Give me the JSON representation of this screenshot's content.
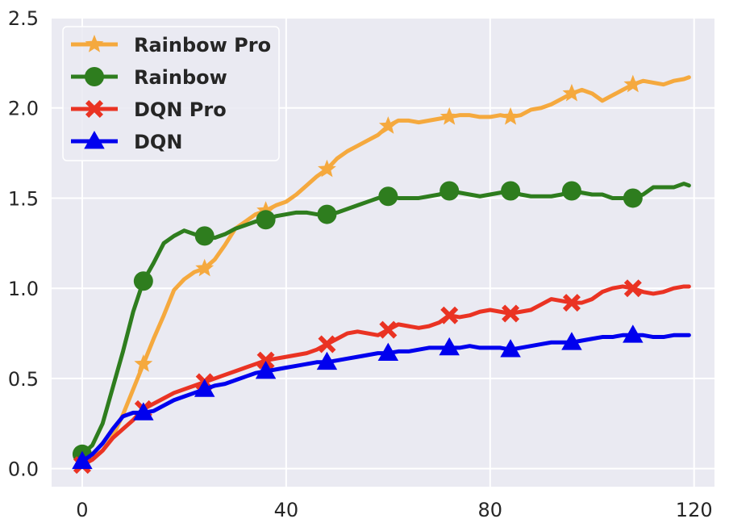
{
  "chart_data": {
    "type": "line",
    "title": "",
    "xlabel": "",
    "ylabel": "",
    "xlim": [
      -6,
      124
    ],
    "ylim": [
      -0.1,
      2.5
    ],
    "xticks": [
      0,
      40,
      80,
      120
    ],
    "yticks": [
      0.0,
      0.5,
      1.0,
      1.5,
      2.0,
      2.5
    ],
    "xtick_labels": [
      "0",
      "40",
      "80",
      "120"
    ],
    "ytick_labels": [
      "0.0",
      "0.5",
      "1.0",
      "1.5",
      "2.0",
      "2.5"
    ],
    "grid": true,
    "legend_position": "top-left",
    "background": "#eaeaf2",
    "series": [
      {
        "name": "Rainbow Pro",
        "color": "#f5a93e",
        "marker": "star",
        "x": [
          0,
          2,
          4,
          6,
          8,
          10,
          12,
          14,
          16,
          18,
          20,
          22,
          24,
          26,
          28,
          30,
          32,
          34,
          36,
          38,
          40,
          42,
          44,
          46,
          48,
          50,
          52,
          54,
          56,
          58,
          60,
          62,
          64,
          66,
          68,
          70,
          72,
          74,
          76,
          78,
          80,
          82,
          84,
          86,
          88,
          90,
          92,
          94,
          96,
          98,
          100,
          102,
          104,
          106,
          108,
          110,
          112,
          114,
          116,
          118,
          119
        ],
        "y": [
          0.03,
          0.06,
          0.1,
          0.18,
          0.3,
          0.44,
          0.58,
          0.72,
          0.85,
          0.99,
          1.05,
          1.09,
          1.11,
          1.16,
          1.24,
          1.33,
          1.37,
          1.41,
          1.43,
          1.46,
          1.48,
          1.52,
          1.57,
          1.62,
          1.66,
          1.72,
          1.76,
          1.79,
          1.82,
          1.85,
          1.9,
          1.93,
          1.93,
          1.92,
          1.93,
          1.94,
          1.95,
          1.96,
          1.96,
          1.95,
          1.95,
          1.96,
          1.95,
          1.96,
          1.99,
          2.0,
          2.02,
          2.05,
          2.08,
          2.1,
          2.08,
          2.04,
          2.07,
          2.1,
          2.13,
          2.15,
          2.14,
          2.13,
          2.15,
          2.16,
          2.17
        ],
        "marker_x": [
          12,
          24,
          36,
          48,
          60,
          72,
          84,
          96,
          108
        ]
      },
      {
        "name": "Rainbow",
        "color": "#2e7d1e",
        "marker": "circle",
        "x": [
          0,
          2,
          4,
          6,
          8,
          10,
          12,
          14,
          16,
          18,
          20,
          22,
          24,
          26,
          28,
          30,
          32,
          34,
          36,
          38,
          40,
          42,
          44,
          46,
          48,
          50,
          52,
          54,
          56,
          58,
          60,
          62,
          64,
          66,
          68,
          70,
          72,
          74,
          76,
          78,
          80,
          82,
          84,
          86,
          88,
          90,
          92,
          94,
          96,
          98,
          100,
          102,
          104,
          106,
          108,
          110,
          112,
          114,
          116,
          118,
          119
        ],
        "y": [
          0.08,
          0.13,
          0.25,
          0.45,
          0.65,
          0.87,
          1.04,
          1.14,
          1.25,
          1.29,
          1.32,
          1.3,
          1.29,
          1.28,
          1.3,
          1.33,
          1.35,
          1.37,
          1.38,
          1.4,
          1.41,
          1.42,
          1.42,
          1.41,
          1.41,
          1.42,
          1.44,
          1.46,
          1.48,
          1.5,
          1.51,
          1.5,
          1.5,
          1.5,
          1.51,
          1.52,
          1.54,
          1.53,
          1.52,
          1.51,
          1.52,
          1.53,
          1.54,
          1.52,
          1.51,
          1.51,
          1.51,
          1.52,
          1.54,
          1.53,
          1.52,
          1.52,
          1.5,
          1.5,
          1.5,
          1.52,
          1.56,
          1.56,
          1.56,
          1.58,
          1.57
        ],
        "marker_x": [
          0,
          12,
          24,
          36,
          48,
          60,
          72,
          84,
          96,
          108
        ]
      },
      {
        "name": "DQN Pro",
        "color": "#ea3323",
        "marker": "x",
        "x": [
          0,
          2,
          4,
          6,
          8,
          10,
          12,
          14,
          16,
          18,
          20,
          22,
          24,
          26,
          28,
          30,
          32,
          34,
          36,
          38,
          40,
          42,
          44,
          46,
          48,
          50,
          52,
          54,
          56,
          58,
          60,
          62,
          64,
          66,
          68,
          70,
          72,
          74,
          76,
          78,
          80,
          82,
          84,
          86,
          88,
          90,
          92,
          94,
          96,
          98,
          100,
          102,
          104,
          106,
          108,
          110,
          112,
          114,
          116,
          118,
          119
        ],
        "y": [
          0.02,
          0.05,
          0.1,
          0.17,
          0.22,
          0.27,
          0.33,
          0.36,
          0.39,
          0.42,
          0.44,
          0.46,
          0.48,
          0.5,
          0.52,
          0.54,
          0.56,
          0.58,
          0.6,
          0.61,
          0.62,
          0.63,
          0.64,
          0.66,
          0.69,
          0.72,
          0.75,
          0.76,
          0.75,
          0.74,
          0.77,
          0.8,
          0.79,
          0.78,
          0.79,
          0.81,
          0.85,
          0.84,
          0.85,
          0.87,
          0.88,
          0.87,
          0.86,
          0.87,
          0.88,
          0.91,
          0.94,
          0.93,
          0.92,
          0.92,
          0.94,
          0.98,
          1.0,
          1.01,
          1.0,
          0.98,
          0.97,
          0.98,
          1.0,
          1.01,
          1.01
        ],
        "marker_x": [
          0,
          12,
          24,
          36,
          48,
          60,
          72,
          84,
          96,
          108
        ]
      },
      {
        "name": "DQN",
        "color": "#0000ee",
        "marker": "triangle",
        "x": [
          0,
          2,
          4,
          6,
          8,
          10,
          12,
          14,
          16,
          18,
          20,
          22,
          24,
          26,
          28,
          30,
          32,
          34,
          36,
          38,
          40,
          42,
          44,
          46,
          48,
          50,
          52,
          54,
          56,
          58,
          60,
          62,
          64,
          66,
          68,
          70,
          72,
          74,
          76,
          78,
          80,
          82,
          84,
          86,
          88,
          90,
          92,
          94,
          96,
          98,
          100,
          102,
          104,
          106,
          108,
          110,
          112,
          114,
          116,
          118,
          119
        ],
        "y": [
          0.04,
          0.08,
          0.14,
          0.22,
          0.29,
          0.31,
          0.31,
          0.32,
          0.35,
          0.38,
          0.4,
          0.42,
          0.44,
          0.46,
          0.47,
          0.49,
          0.51,
          0.53,
          0.54,
          0.55,
          0.56,
          0.57,
          0.58,
          0.59,
          0.59,
          0.6,
          0.61,
          0.62,
          0.63,
          0.64,
          0.64,
          0.65,
          0.65,
          0.66,
          0.67,
          0.67,
          0.67,
          0.67,
          0.68,
          0.67,
          0.67,
          0.67,
          0.66,
          0.67,
          0.68,
          0.69,
          0.7,
          0.7,
          0.7,
          0.71,
          0.72,
          0.73,
          0.73,
          0.74,
          0.74,
          0.74,
          0.73,
          0.73,
          0.74,
          0.74,
          0.74
        ],
        "marker_x": [
          0,
          12,
          24,
          36,
          48,
          60,
          72,
          84,
          96,
          108
        ]
      }
    ]
  }
}
